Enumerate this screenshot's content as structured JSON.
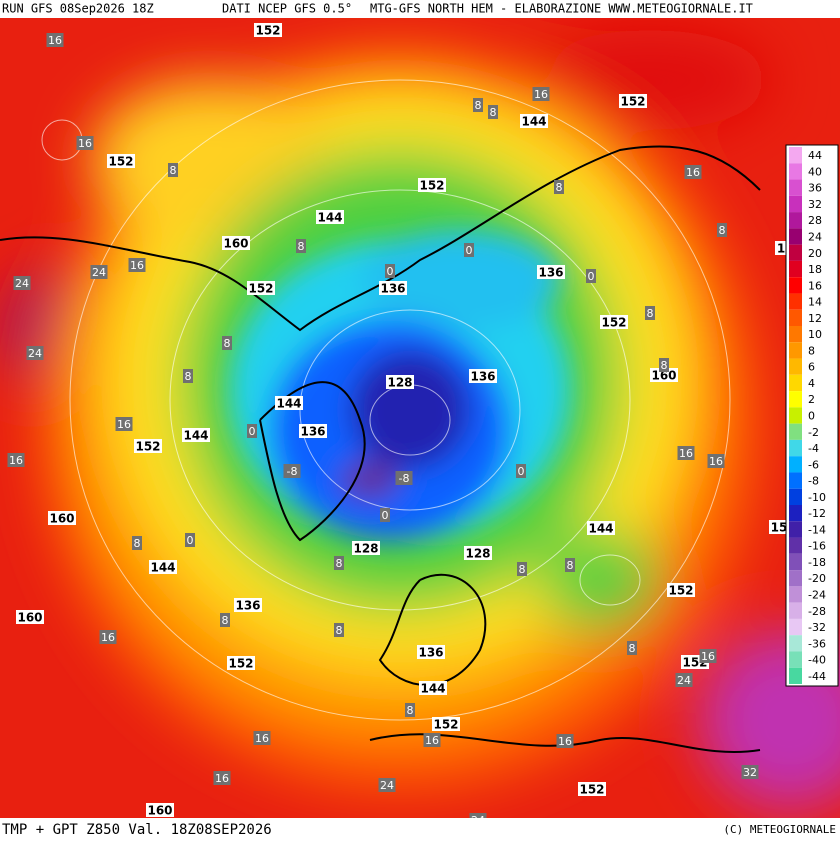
{
  "header": {
    "run": "RUN GFS 08Sep2026 18Z",
    "source": "DATI NCEP GFS 0.5°",
    "product": "MTG-GFS NORTH HEM - ELABORAZIONE WWW.METEOGIORNALE.IT"
  },
  "footer": {
    "title": "TMP + GPT Z850 Val. 18Z08SEP2026",
    "copyright": "(C) METEOGIORNALE"
  },
  "legend": {
    "values": [
      44,
      40,
      36,
      32,
      28,
      24,
      20,
      18,
      16,
      14,
      12,
      10,
      8,
      6,
      4,
      2,
      0,
      -2,
      -4,
      -6,
      -8,
      -10,
      -12,
      -14,
      -16,
      -18,
      -20,
      -24,
      -28,
      -32,
      -36,
      -40,
      -44
    ],
    "colors": [
      "#f4a8f0",
      "#e878e4",
      "#d850d0",
      "#c830bc",
      "#b0189c",
      "#980070",
      "#c00040",
      "#e00020",
      "#ff0000",
      "#ff3000",
      "#ff5800",
      "#ff7800",
      "#ff9800",
      "#ffb800",
      "#ffd800",
      "#ffff00",
      "#c8f000",
      "#80e080",
      "#40d8e8",
      "#00b0ff",
      "#0070ff",
      "#0040e0",
      "#1c20c0",
      "#4020a8",
      "#6030a8",
      "#8050b8",
      "#a070c8",
      "#c090d8",
      "#d8b0e8",
      "#e8c8f4",
      "#a8e8d8",
      "#78e0b8",
      "#48d8a0"
    ]
  },
  "gpt_labels": [
    152,
    152,
    144,
    152,
    152,
    144,
    160,
    136,
    152,
    136,
    152,
    160,
    128,
    136,
    144,
    136,
    144,
    152,
    160,
    144,
    128,
    128,
    144,
    152,
    136,
    160,
    152,
    152,
    136,
    144,
    152,
    152,
    160,
    15,
    1
  ],
  "tmp_labels": [
    16,
    16,
    8,
    16,
    8,
    8,
    16,
    8,
    8,
    8,
    0,
    0,
    0,
    24,
    16,
    24,
    8,
    24,
    8,
    8,
    8,
    16,
    16,
    0,
    -8,
    -8,
    0,
    0,
    16,
    16,
    0,
    8,
    8,
    8,
    8,
    8,
    16,
    8,
    8,
    24,
    16,
    8,
    16,
    16,
    16,
    16,
    24,
    32,
    24
  ]
}
